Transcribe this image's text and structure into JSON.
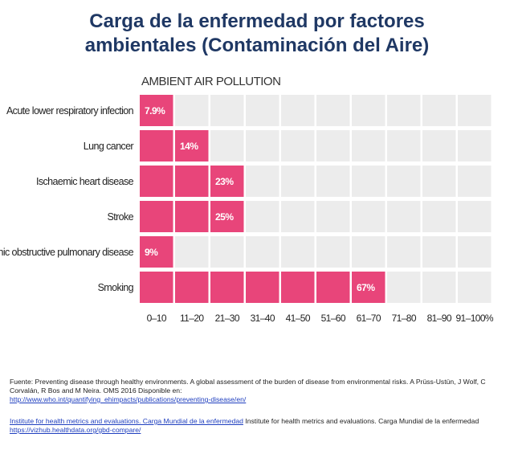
{
  "page": {
    "title_line1": "Carga de la enfermedad por factores",
    "title_line2": "ambientales (Contaminación del Aire)"
  },
  "chart_data": {
    "type": "heatmap",
    "title": "AMBIENT AIR POLLUTION",
    "xlabel": "",
    "ylabel": "",
    "categories": [
      "0–10",
      "11–20",
      "21–30",
      "31–40",
      "41–50",
      "51–60",
      "61–70",
      "71–80",
      "81–90",
      "91–100%"
    ],
    "rows": [
      {
        "label": "Acute lower respiratory infection",
        "value": 7.9,
        "display": "7.9%"
      },
      {
        "label": "Lung cancer",
        "value": 14,
        "display": "14%"
      },
      {
        "label": "Ischaemic heart disease",
        "value": 23,
        "display": "23%"
      },
      {
        "label": "Stroke",
        "value": 25,
        "display": "25%"
      },
      {
        "label": "Chronic obstructive pulmonary disease",
        "value": 9,
        "display": "9%"
      },
      {
        "label": "Smoking",
        "value": 67,
        "display": "67%"
      }
    ],
    "xlim": [
      0,
      100
    ],
    "grid": true,
    "colors": {
      "filled": "#e8457a",
      "empty": "#ececec",
      "value_text": "#ffffff"
    }
  },
  "footer": {
    "source_text": "Fuente: Preventing disease through healthy environments. A global assessment of the burden of disease from environmental risks. A Prüss-Ustün, J Wolf, C Corvalán, R Bos and M Neira. OMS 2016 Disponible en:",
    "source_link": "http://www.who.int/quantifying_ehimpacts/publications/preventing-disease/en/",
    "ihme_link_label": "Institute for health metrics and evaluations. Carga Mundial de la enfermedad",
    "ihme_text": " Institute for health metrics and evaluations. Carga Mundial de la enfermedad ",
    "ihme_url": "https://vizhub.healthdata.org/gbd-compare/"
  }
}
